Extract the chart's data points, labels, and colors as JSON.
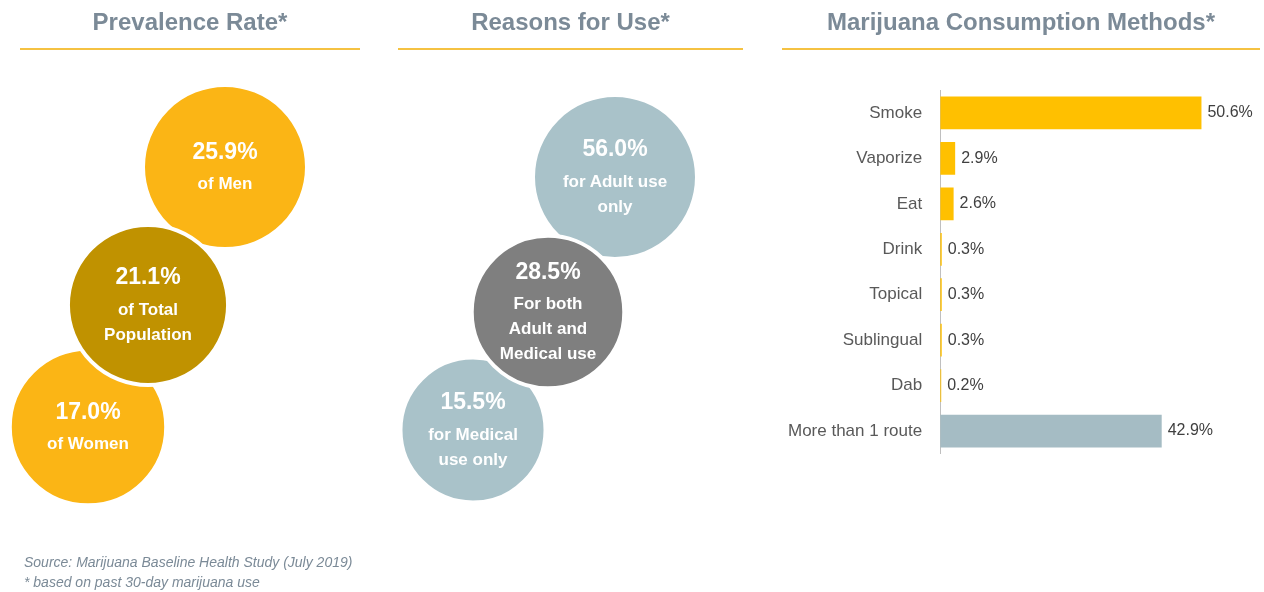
{
  "chart_data": [
    {
      "type": "other",
      "title": "Prevalence Rate*",
      "categories": [
        "of Men",
        "of Total Population",
        "of Women"
      ],
      "values": [
        25.9,
        21.1,
        17.0
      ],
      "value_labels": [
        "25.9%",
        "21.1%",
        "17.0%"
      ],
      "colors": [
        "#fbb515",
        "#c09200",
        "#fbb515"
      ],
      "annotations": [
        "Source: Marijuana Baseline Health Study (July 2019)",
        "* based on past 30-day marijuana use"
      ]
    },
    {
      "type": "other",
      "title": "Reasons for Use*",
      "categories": [
        "for Adult use only",
        "For both Adult and Medical use",
        "for Medical use only"
      ],
      "values": [
        56.0,
        28.5,
        15.5
      ],
      "value_labels": [
        "56.0%",
        "28.5%",
        "15.5%"
      ],
      "colors": [
        "#a9c2c9",
        "#7f7f7f",
        "#a9c2c9"
      ]
    },
    {
      "type": "bar",
      "orientation": "horizontal",
      "title": "Marijuana Consumption Methods*",
      "categories": [
        "Smoke",
        "Vaporize",
        "Eat",
        "Drink",
        "Topical",
        "Sublingual",
        "Dab",
        "More than 1 route"
      ],
      "values": [
        50.6,
        2.9,
        2.6,
        0.3,
        0.3,
        0.3,
        0.2,
        42.9
      ],
      "value_labels": [
        "50.6%",
        "2.9%",
        "2.6%",
        "0.3%",
        "0.3%",
        "0.3%",
        "0.2%",
        "42.9%"
      ],
      "colors": [
        "#ffc000",
        "#ffc000",
        "#ffc000",
        "#ffc000",
        "#ffc000",
        "#ffc000",
        "#ffc000",
        "#a5bcc4"
      ],
      "legend": false
    }
  ]
}
